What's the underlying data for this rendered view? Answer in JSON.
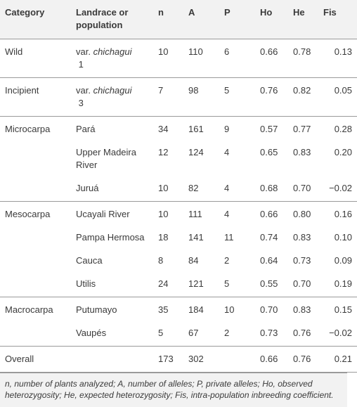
{
  "headers": {
    "category": "Category",
    "population": "Landrace or population",
    "n": "n",
    "a": "A",
    "p": "P",
    "ho": "Ho",
    "he": "He",
    "fis": "Fis"
  },
  "groups": [
    {
      "category": "Wild",
      "rows": [
        {
          "pop_prefix": "var. ",
          "pop_italic": "chichagui",
          "pop_suffix": " 1",
          "n": "10",
          "a": "110",
          "p": "6",
          "ho": "0.66",
          "he": "0.78",
          "fis": "0.13"
        }
      ]
    },
    {
      "category": "Incipient",
      "rows": [
        {
          "pop_prefix": "var. ",
          "pop_italic": "chichagui",
          "pop_suffix": " 3",
          "n": "7",
          "a": "98",
          "p": "5",
          "ho": "0.76",
          "he": "0.82",
          "fis": "0.05"
        }
      ]
    },
    {
      "category": "Microcarpa",
      "rows": [
        {
          "pop_prefix": "Pará",
          "pop_italic": "",
          "pop_suffix": "",
          "n": "34",
          "a": "161",
          "p": "9",
          "ho": "0.57",
          "he": "0.77",
          "fis": "0.28"
        },
        {
          "pop_prefix": "Upper Madeira River",
          "pop_italic": "",
          "pop_suffix": "",
          "n": "12",
          "a": "124",
          "p": "4",
          "ho": "0.65",
          "he": "0.83",
          "fis": "0.20"
        },
        {
          "pop_prefix": "Juruá",
          "pop_italic": "",
          "pop_suffix": "",
          "n": "10",
          "a": "82",
          "p": "4",
          "ho": "0.68",
          "he": "0.70",
          "fis": "−0.02"
        }
      ]
    },
    {
      "category": "Mesocarpa",
      "rows": [
        {
          "pop_prefix": "Ucayali River",
          "pop_italic": "",
          "pop_suffix": "",
          "n": "10",
          "a": "111",
          "p": "4",
          "ho": "0.66",
          "he": "0.80",
          "fis": "0.16"
        },
        {
          "pop_prefix": "Pampa Hermosa",
          "pop_italic": "",
          "pop_suffix": "",
          "n": "18",
          "a": "141",
          "p": "11",
          "ho": "0.74",
          "he": "0.83",
          "fis": "0.10"
        },
        {
          "pop_prefix": "Cauca",
          "pop_italic": "",
          "pop_suffix": "",
          "n": "8",
          "a": "84",
          "p": "2",
          "ho": "0.64",
          "he": "0.73",
          "fis": "0.09"
        },
        {
          "pop_prefix": "Utilis",
          "pop_italic": "",
          "pop_suffix": "",
          "n": "24",
          "a": "121",
          "p": "5",
          "ho": "0.55",
          "he": "0.70",
          "fis": "0.19"
        }
      ]
    },
    {
      "category": "Macrocarpa",
      "rows": [
        {
          "pop_prefix": "Putumayo",
          "pop_italic": "",
          "pop_suffix": "",
          "n": "35",
          "a": "184",
          "p": "10",
          "ho": "0.70",
          "he": "0.83",
          "fis": "0.15"
        },
        {
          "pop_prefix": "Vaupés",
          "pop_italic": "",
          "pop_suffix": "",
          "n": "5",
          "a": "67",
          "p": "2",
          "ho": "0.73",
          "he": "0.76",
          "fis": "−0.02"
        }
      ]
    },
    {
      "category": "Overall",
      "rows": [
        {
          "pop_prefix": "",
          "pop_italic": "",
          "pop_suffix": "",
          "n": "173",
          "a": "302",
          "p": "",
          "ho": "0.66",
          "he": "0.76",
          "fis": "0.21"
        }
      ]
    }
  ],
  "footnote": {
    "line1": "n, number of plants analyzed; A, number of alleles; P, private alleles; Ho, observed",
    "line2": "heterozygosity; He, expected heterozygosity; Fis, intra-population inbreeding coefficient."
  }
}
